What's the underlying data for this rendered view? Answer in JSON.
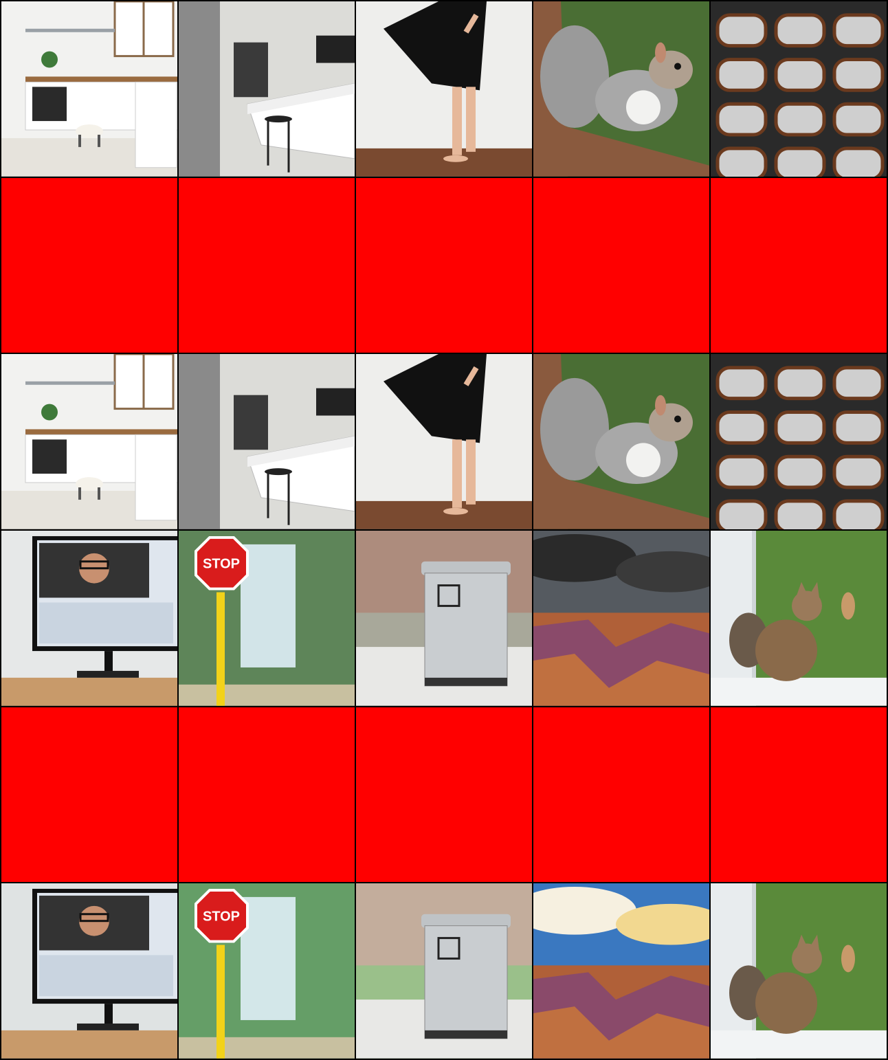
{
  "grid": {
    "columns": 5,
    "rows": 6,
    "placeholder_color": "#ff0000",
    "border_color": "#000000"
  },
  "tiles": [
    {
      "kind": "image",
      "subject": "kitchen-goat",
      "style": "photo"
    },
    {
      "kind": "image",
      "subject": "kitchen-island",
      "style": "photo"
    },
    {
      "kind": "image",
      "subject": "person-black-dress",
      "style": "photo"
    },
    {
      "kind": "image",
      "subject": "squirrel",
      "style": "photo"
    },
    {
      "kind": "image",
      "subject": "eyeglasses",
      "style": "photo"
    },
    {
      "kind": "placeholder"
    },
    {
      "kind": "placeholder"
    },
    {
      "kind": "placeholder"
    },
    {
      "kind": "placeholder"
    },
    {
      "kind": "placeholder"
    },
    {
      "kind": "image",
      "subject": "kitchen-goat",
      "style": "photo"
    },
    {
      "kind": "image",
      "subject": "kitchen-island",
      "style": "photo"
    },
    {
      "kind": "image",
      "subject": "person-black-dress",
      "style": "photo"
    },
    {
      "kind": "image",
      "subject": "squirrel",
      "style": "photo"
    },
    {
      "kind": "image",
      "subject": "eyeglasses",
      "style": "photo"
    },
    {
      "kind": "image",
      "subject": "computer-monitor",
      "style": "photo"
    },
    {
      "kind": "image",
      "subject": "stop-sign",
      "style": "photo",
      "sign_text": "STOP"
    },
    {
      "kind": "image",
      "subject": "trash-can",
      "style": "photo"
    },
    {
      "kind": "image",
      "subject": "canyon",
      "style": "photo"
    },
    {
      "kind": "image",
      "subject": "cat-window",
      "style": "photo"
    },
    {
      "kind": "placeholder"
    },
    {
      "kind": "placeholder"
    },
    {
      "kind": "placeholder"
    },
    {
      "kind": "placeholder"
    },
    {
      "kind": "placeholder"
    },
    {
      "kind": "image",
      "subject": "computer-monitor",
      "style": "illustration"
    },
    {
      "kind": "image",
      "subject": "stop-sign",
      "style": "illustration",
      "sign_text": "STOP"
    },
    {
      "kind": "image",
      "subject": "trash-can",
      "style": "illustration"
    },
    {
      "kind": "image",
      "subject": "canyon",
      "style": "illustration"
    },
    {
      "kind": "image",
      "subject": "cat-window",
      "style": "illustration"
    }
  ]
}
